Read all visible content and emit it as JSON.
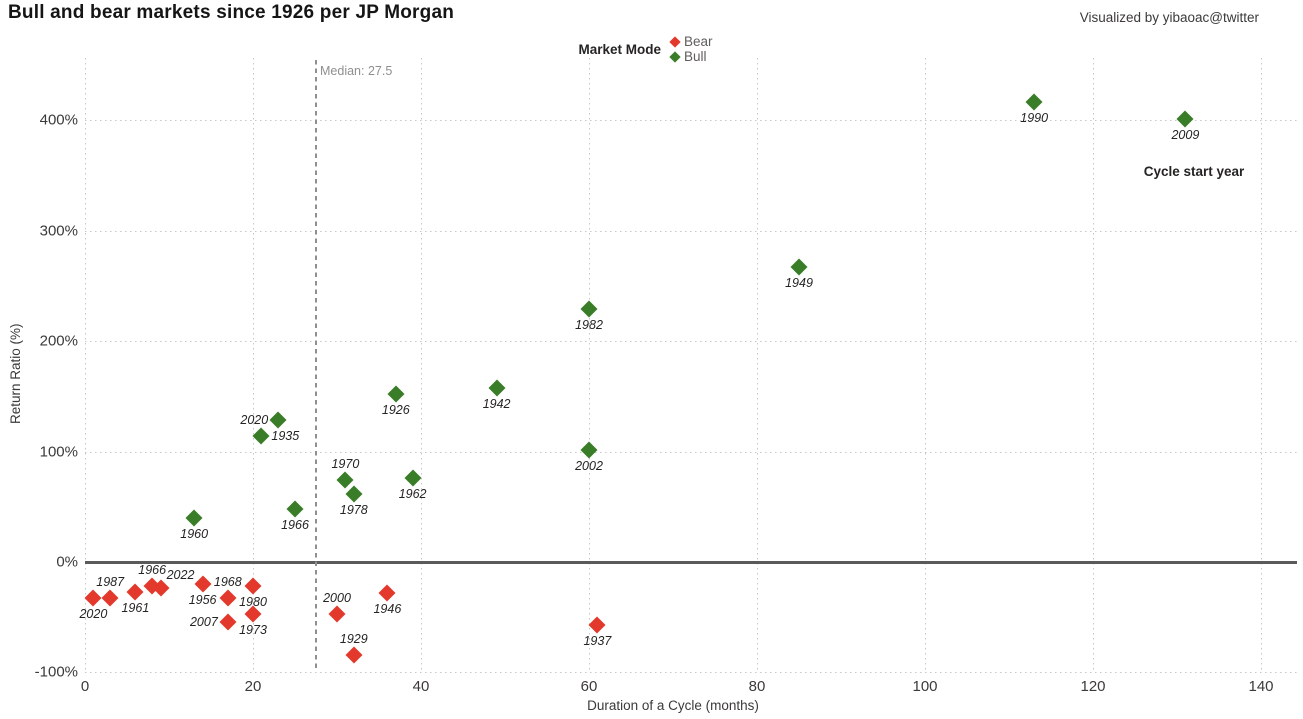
{
  "title": "Bull and bear markets since 1926 per JP Morgan",
  "credit": "Visualized by yibaoac@twitter",
  "legend": {
    "title": "Market Mode",
    "items": [
      {
        "label": "Bear",
        "color": "#E2392C"
      },
      {
        "label": "Bull",
        "color": "#3A7D28"
      }
    ]
  },
  "annotations": {
    "median_label": "Median: 27.5",
    "cycle_start_year": "Cycle start year"
  },
  "chart_data": {
    "type": "scatter",
    "title": "Bull and bear markets since 1926 per JP Morgan",
    "xlabel": "Duration of a Cycle (months)",
    "ylabel": "Return Ratio (%)",
    "xlim": [
      0,
      140
    ],
    "ylim": [
      -100,
      450
    ],
    "x_ticks": [
      0,
      20,
      40,
      60,
      80,
      100,
      120,
      140
    ],
    "y_ticks_pct": [
      400,
      300,
      200,
      100,
      0,
      -100
    ],
    "grid": true,
    "legend_position": "top-center",
    "median_months": 27.5,
    "series": [
      {
        "name": "Bear",
        "color": "#E2392C",
        "points": [
          {
            "year": "2020",
            "months": 1,
            "return_pct": -33,
            "label_pos": "below"
          },
          {
            "year": "1987",
            "months": 3,
            "return_pct": -33,
            "label_pos": "above"
          },
          {
            "year": "1961",
            "months": 6,
            "return_pct": -27,
            "label_pos": "below"
          },
          {
            "year": "1966",
            "months": 8,
            "return_pct": -22,
            "label_pos": "above"
          },
          {
            "year": "2022",
            "months": 9,
            "return_pct": -24,
            "label_pos": "above-right"
          },
          {
            "year": "1956",
            "months": 14,
            "return_pct": -20,
            "label_pos": "below"
          },
          {
            "year": "1968",
            "months": 17,
            "return_pct": -33,
            "label_pos": "above"
          },
          {
            "year": "1980",
            "months": 20,
            "return_pct": -22,
            "label_pos": "below"
          },
          {
            "year": "1973",
            "months": 20,
            "return_pct": -47,
            "label_pos": "below"
          },
          {
            "year": "2007",
            "months": 17,
            "return_pct": -54,
            "label_pos": "left"
          },
          {
            "year": "2000",
            "months": 30,
            "return_pct": -47,
            "label_pos": "above"
          },
          {
            "year": "1929",
            "months": 32,
            "return_pct": -84,
            "label_pos": "above"
          },
          {
            "year": "1946",
            "months": 36,
            "return_pct": -28,
            "label_pos": "below"
          },
          {
            "year": "1937",
            "months": 61,
            "return_pct": -57,
            "label_pos": "below"
          }
        ]
      },
      {
        "name": "Bull",
        "color": "#3A7D28",
        "points": [
          {
            "year": "1960",
            "months": 13,
            "return_pct": 40,
            "label_pos": "below"
          },
          {
            "year": "1966",
            "months": 25,
            "return_pct": 48,
            "label_pos": "below"
          },
          {
            "year": "1978",
            "months": 32,
            "return_pct": 62,
            "label_pos": "below"
          },
          {
            "year": "1970",
            "months": 31,
            "return_pct": 74,
            "label_pos": "above"
          },
          {
            "year": "1962",
            "months": 39,
            "return_pct": 76,
            "label_pos": "below"
          },
          {
            "year": "2002",
            "months": 60,
            "return_pct": 101,
            "label_pos": "below"
          },
          {
            "year": "1935",
            "months": 21,
            "return_pct": 114,
            "label_pos": "right"
          },
          {
            "year": "2020",
            "months": 23,
            "return_pct": 129,
            "label_pos": "left"
          },
          {
            "year": "1926",
            "months": 37,
            "return_pct": 152,
            "label_pos": "below"
          },
          {
            "year": "1942",
            "months": 49,
            "return_pct": 158,
            "label_pos": "below"
          },
          {
            "year": "1982",
            "months": 60,
            "return_pct": 229,
            "label_pos": "below"
          },
          {
            "year": "1949",
            "months": 85,
            "return_pct": 267,
            "label_pos": "below"
          },
          {
            "year": "2009",
            "months": 131,
            "return_pct": 401,
            "label_pos": "below"
          },
          {
            "year": "1990",
            "months": 113,
            "return_pct": 417,
            "label_pos": "below"
          }
        ]
      }
    ]
  }
}
